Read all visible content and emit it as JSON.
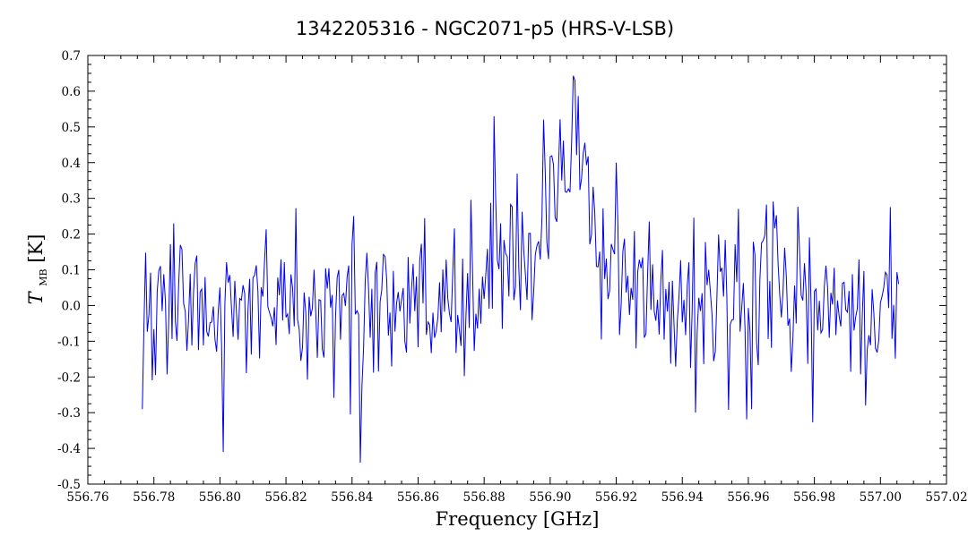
{
  "chart_data": {
    "type": "line",
    "title": "1342205316 - NGC2071-p5 (HRS-V-LSB)",
    "xlabel": "Frequency [GHz]",
    "ylabel_main": "T",
    "ylabel_sub": "MB",
    "ylabel_unit": "[K]",
    "xlim": [
      556.76,
      557.02
    ],
    "ylim": [
      -0.5,
      0.7
    ],
    "x_ticks": [
      "556.76",
      "556.78",
      "556.80",
      "556.82",
      "556.84",
      "556.86",
      "556.88",
      "556.90",
      "556.92",
      "556.94",
      "556.96",
      "556.98",
      "557.00",
      "557.02"
    ],
    "y_ticks": [
      "-0.5",
      "-0.4",
      "-0.3",
      "-0.2",
      "-0.1",
      "0.0",
      "0.1",
      "0.2",
      "0.3",
      "0.4",
      "0.5",
      "0.6",
      "0.7"
    ],
    "grid": false,
    "series": [
      {
        "color": "#0000ee",
        "x_start": 556.7765,
        "x_end": 557.0055,
        "channel_step": 0.0005,
        "noise_rms": 0.11,
        "profile_shape": "gaussian",
        "profile": [
          {
            "center": 556.887,
            "amplitude": 0.14,
            "sigma": 0.007
          },
          {
            "center": 556.906,
            "amplitude": 0.43,
            "sigma": 0.0065
          },
          {
            "center": 556.924,
            "amplitude": 0.1,
            "sigma": 0.004
          }
        ],
        "extremes": [
          {
            "x": 556.7765,
            "y": -0.29
          },
          {
            "x": 556.7862,
            "y": 0.23
          },
          {
            "x": 556.8012,
            "y": -0.41
          },
          {
            "x": 556.8425,
            "y": -0.44
          },
          {
            "x": 556.8832,
            "y": 0.53
          },
          {
            "x": 556.9074,
            "y": 0.63
          },
          {
            "x": 556.9198,
            "y": 0.4
          },
          {
            "x": 556.9438,
            "y": -0.3
          },
          {
            "x": 556.9611,
            "y": -0.29
          },
          {
            "x": 556.9957,
            "y": -0.28
          },
          {
            "x": 557.0055,
            "y": 0.06
          }
        ]
      }
    ]
  }
}
